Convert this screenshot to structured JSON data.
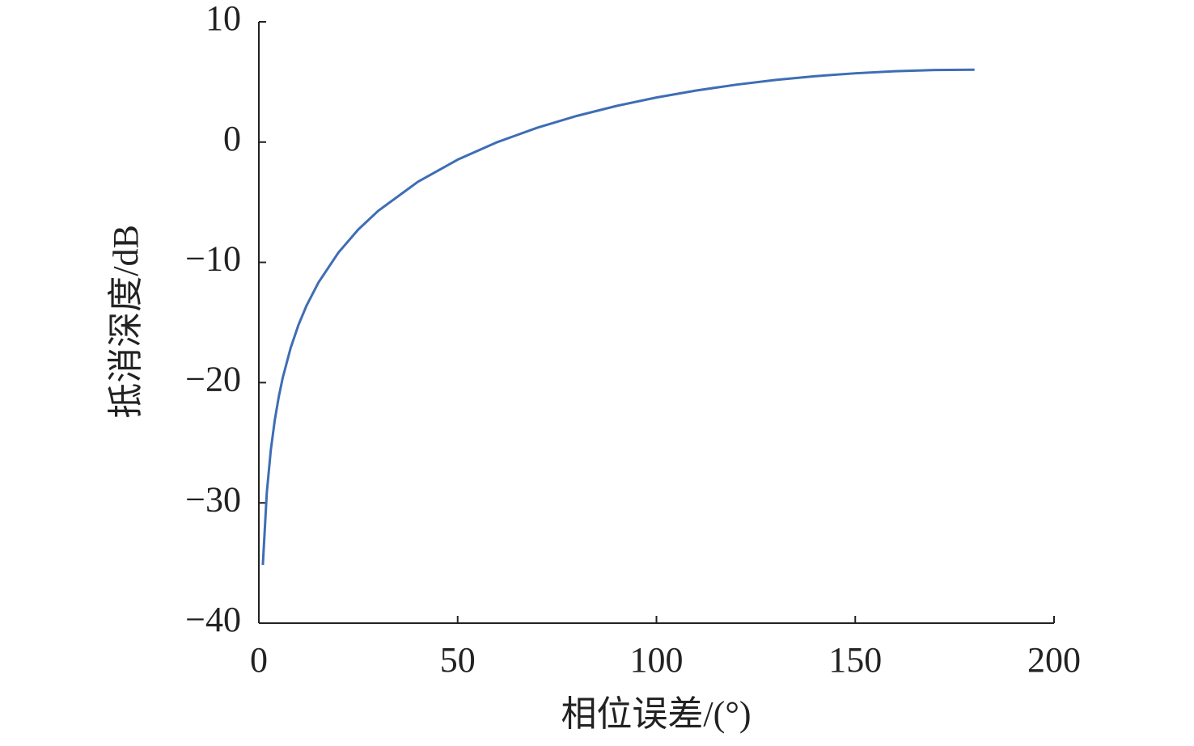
{
  "chart_data": {
    "type": "line",
    "x_label": "相位误差/(°)",
    "y_label": "抵消深度/dB",
    "x": [
      1,
      2,
      3,
      4,
      5,
      6,
      8,
      10,
      12,
      15,
      20,
      25,
      30,
      40,
      50,
      60,
      70,
      80,
      90,
      100,
      110,
      120,
      130,
      140,
      150,
      160,
      170,
      180
    ],
    "series": [
      {
        "color": "#3e6db5",
        "values": [
          -35.16,
          -29.14,
          -25.62,
          -23.12,
          -21.19,
          -19.6,
          -17.11,
          -15.17,
          -13.59,
          -11.67,
          -9.19,
          -7.27,
          -5.72,
          -3.3,
          -1.46,
          0,
          1.19,
          2.18,
          3.01,
          3.71,
          4.29,
          4.77,
          5.17,
          5.48,
          5.72,
          5.89,
          5.99,
          6.02
        ]
      }
    ],
    "xlim": [
      0,
      200
    ],
    "xticks": [
      0,
      50,
      100,
      150,
      200
    ],
    "ylim": [
      -40,
      10
    ],
    "yticks": [
      {
        "value": -40,
        "label": "−40"
      },
      {
        "value": -30,
        "label": "−30"
      },
      {
        "value": -20,
        "label": "−20"
      },
      {
        "value": -10,
        "label": "−10"
      },
      0,
      10
    ],
    "grid": false
  }
}
